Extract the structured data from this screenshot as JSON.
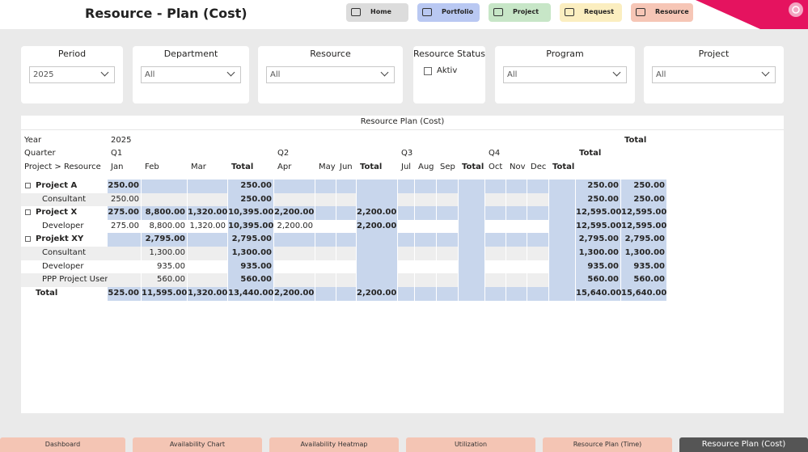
{
  "header": {
    "title": "Resource - Plan (Cost)",
    "nav": [
      "Home",
      "Portfolio",
      "Project",
      "Request",
      "Resource"
    ]
  },
  "filters": [
    {
      "label": "Period",
      "value": "2025"
    },
    {
      "label": "Department",
      "value": "All"
    },
    {
      "label": "Resource",
      "value": "All"
    },
    {
      "label": "Resource Status",
      "option": "Aktiv"
    },
    {
      "label": "Program",
      "value": "All"
    },
    {
      "label": "Project",
      "value": "All"
    }
  ],
  "matrix": {
    "title": "Resource Plan (Cost)",
    "header_rows": [
      [
        "Year",
        "2025",
        null,
        null,
        null,
        null,
        null,
        null,
        null,
        null,
        null,
        null,
        null,
        null,
        null,
        null,
        null,
        null,
        "Total"
      ],
      [
        "Quarter",
        "Q1",
        null,
        null,
        null,
        "Q2",
        null,
        null,
        null,
        "Q3",
        null,
        null,
        null,
        "Q4",
        null,
        null,
        null,
        "Total",
        null
      ],
      [
        "Project > Resource",
        "Jan",
        "Feb",
        "Mar",
        "Total",
        "Apr",
        "May",
        "Jun",
        "Total",
        "Jul",
        "Aug",
        "Sep",
        "Total",
        "Oct",
        "Nov",
        "Dec",
        "Total",
        null,
        null
      ]
    ],
    "groups": [
      {
        "name": "Project A",
        "cells": [
          "250.00",
          null,
          null,
          "250.00",
          null,
          null,
          null,
          null,
          null,
          null,
          null,
          null,
          null,
          null,
          null,
          null,
          "250.00",
          "250.00"
        ],
        "children": [
          {
            "name": "Consultant",
            "cells": [
              "250.00",
              null,
              null,
              "250.00",
              null,
              null,
              null,
              null,
              null,
              null,
              null,
              null,
              null,
              null,
              null,
              null,
              "250.00",
              "250.00"
            ]
          }
        ]
      },
      {
        "name": "Project X",
        "cells": [
          "275.00",
          "8,800.00",
          "1,320.00",
          "10,395.00",
          "2,200.00",
          null,
          null,
          "2,200.00",
          null,
          null,
          null,
          null,
          null,
          null,
          null,
          null,
          "12,595.00",
          "12,595.00"
        ],
        "children": [
          {
            "name": "Developer",
            "cells": [
              "275.00",
              "8,800.00",
              "1,320.00",
              "10,395.00",
              "2,200.00",
              null,
              null,
              "2,200.00",
              null,
              null,
              null,
              null,
              null,
              null,
              null,
              null,
              "12,595.00",
              "12,595.00"
            ]
          }
        ]
      },
      {
        "name": "Projekt XY",
        "cells": [
          null,
          "2,795.00",
          null,
          "2,795.00",
          null,
          null,
          null,
          null,
          null,
          null,
          null,
          null,
          null,
          null,
          null,
          null,
          "2,795.00",
          "2,795.00"
        ],
        "children": [
          {
            "name": "Consultant",
            "cells": [
              null,
              "1,300.00",
              null,
              "1,300.00",
              null,
              null,
              null,
              null,
              null,
              null,
              null,
              null,
              null,
              null,
              null,
              null,
              "1,300.00",
              "1,300.00"
            ]
          },
          {
            "name": "Developer",
            "cells": [
              null,
              "935.00",
              null,
              "935.00",
              null,
              null,
              null,
              null,
              null,
              null,
              null,
              null,
              null,
              null,
              null,
              null,
              "935.00",
              "935.00"
            ]
          },
          {
            "name": "PPP Project User",
            "cells": [
              null,
              "560.00",
              null,
              "560.00",
              null,
              null,
              null,
              null,
              null,
              null,
              null,
              null,
              null,
              null,
              null,
              null,
              "560.00",
              "560.00"
            ]
          }
        ]
      }
    ],
    "total": {
      "name": "Total",
      "cells": [
        "525.00",
        "11,595.00",
        "1,320.00",
        "13,440.00",
        "2,200.00",
        null,
        null,
        "2,200.00",
        null,
        null,
        null,
        null,
        null,
        null,
        null,
        null,
        "15,640.00",
        "15,640.00"
      ]
    }
  },
  "tabs": [
    "Dashboard",
    "Availability Chart",
    "Availability Heatmap",
    "Utilization",
    "Resource Plan (Time)",
    "Resource Plan (Cost)"
  ]
}
